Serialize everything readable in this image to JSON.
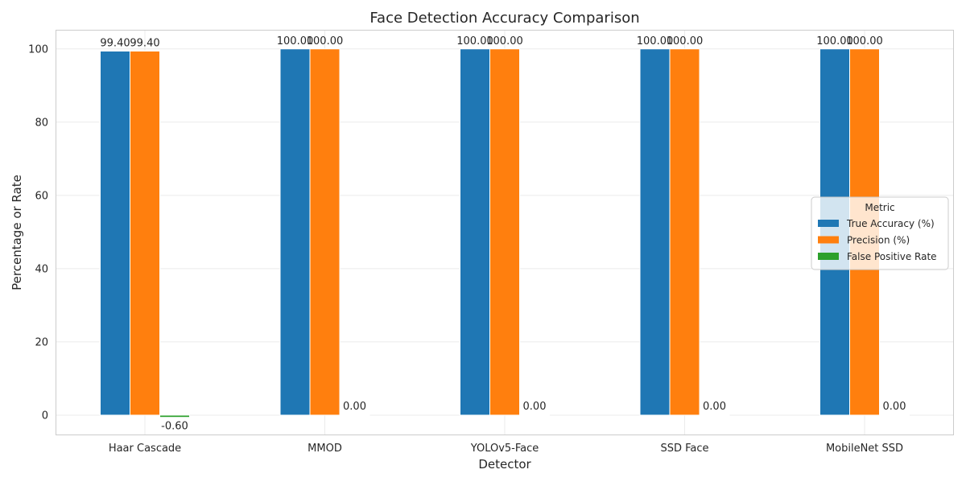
{
  "chart_data": {
    "type": "bar",
    "title": "Face Detection Accuracy Comparison",
    "xlabel": "Detector",
    "ylabel": "Percentage or Rate",
    "categories": [
      "Haar Cascade",
      "MMOD",
      "YOLOv5-Face",
      "SSD Face",
      "MobileNet SSD"
    ],
    "series": [
      {
        "name": "True Accuracy (%)",
        "color": "#1f77b4",
        "values": [
          99.4,
          100.0,
          100.0,
          100.0,
          100.0
        ],
        "labels": [
          "99.40",
          "100.00",
          "100.00",
          "100.00",
          "100.00"
        ]
      },
      {
        "name": "Precision (%)",
        "color": "#ff7f0e",
        "values": [
          99.4,
          100.0,
          100.0,
          100.0,
          100.0
        ],
        "labels": [
          "99.40",
          "100.00",
          "100.00",
          "100.00",
          "100.00"
        ]
      },
      {
        "name": "False Positive Rate",
        "color": "#2ca02c",
        "values": [
          -0.6,
          0.0,
          0.0,
          0.0,
          0.0
        ],
        "labels": [
          "-0.60",
          "0.00",
          "0.00",
          "0.00",
          "0.00"
        ]
      }
    ],
    "ylim": [
      -5.5,
      105
    ],
    "yticks": [
      0,
      20,
      40,
      60,
      80,
      100
    ],
    "grid": true,
    "legend": {
      "title": "Metric",
      "placement": "center-right"
    }
  }
}
